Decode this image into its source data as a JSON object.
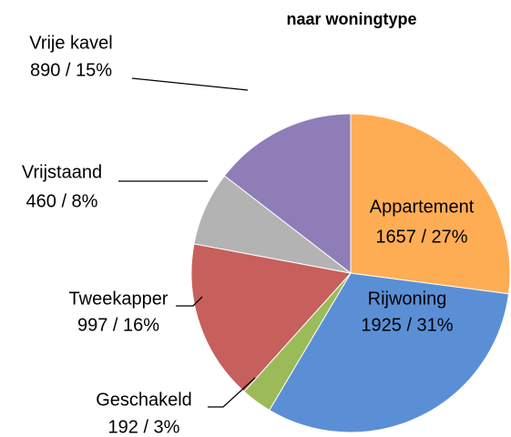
{
  "chart_data": {
    "type": "pie",
    "title": "naar woningtype",
    "categories": [
      "Appartement",
      "Rijwoning",
      "Geschakeld",
      "Tweekapper",
      "Vrijstaand",
      "Vrije kavel"
    ],
    "values": [
      1657,
      1925,
      192,
      997,
      460,
      890
    ],
    "value_labels": [
      "1657 / 27%",
      "1925 / 31%",
      "192 / 3%",
      "997 / 16%",
      "460 / 8%",
      "890 / 15%"
    ],
    "colors": [
      "#ffad55",
      "#5a8fd6",
      "#9bbb59",
      "#c75f5c",
      "#b3b3b3",
      "#8f7db7"
    ]
  }
}
